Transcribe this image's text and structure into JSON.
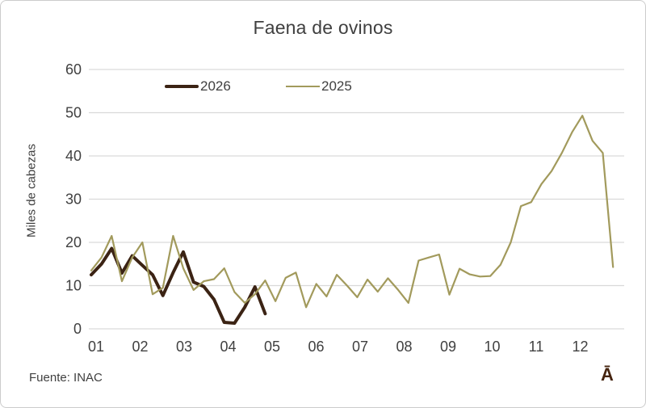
{
  "source": "Fuente: INAC",
  "watermark": "Ā",
  "colors": {
    "grid": "#d9d9d9",
    "axis_text": "#404040",
    "series_2026": "#3B2314",
    "series_2025": "#A29A5C",
    "watermark": "#45240F"
  },
  "chart_data": {
    "type": "line",
    "title": "Faena de ovinos",
    "xlabel": "",
    "ylabel": "Miles de cabezas",
    "x_unit": "week of year, labeled by month",
    "x_tick_labels": [
      "01",
      "02",
      "03",
      "04",
      "05",
      "06",
      "07",
      "08",
      "09",
      "10",
      "11",
      "12"
    ],
    "y_ticks": [
      0,
      10,
      20,
      30,
      40,
      50,
      60
    ],
    "ylim": [
      0,
      60
    ],
    "grid": true,
    "legend_position": "top",
    "series": [
      {
        "name": "2026",
        "color": "#3B2314",
        "stroke_width": 4,
        "start_week": 1,
        "values": [
          12.5,
          15,
          18.6,
          12.9,
          16.9,
          14.7,
          12.5,
          7.7,
          13,
          17.8,
          10.8,
          9.8,
          6.8,
          1.5,
          1.3,
          5,
          9.7,
          3.5
        ]
      },
      {
        "name": "2025",
        "color": "#A29A5C",
        "stroke_width": 2.2,
        "start_week": 1,
        "values": [
          13.5,
          16.5,
          21.5,
          11,
          16.5,
          20,
          8,
          9.5,
          21.5,
          14,
          9,
          11,
          11.5,
          14,
          8.5,
          6,
          8,
          11.2,
          6.4,
          11.8,
          13,
          5,
          10.4,
          7.5,
          12.5,
          10,
          7.3,
          11.4,
          8.6,
          11.7,
          9,
          6,
          15.8,
          16.5,
          17.2,
          7.9,
          13.9,
          12.6,
          12.1,
          12.2,
          14.8,
          20,
          28.4,
          29.3,
          33.5,
          36.5,
          40.7,
          45.5,
          49.3,
          43.5,
          40.7,
          14.3
        ]
      }
    ]
  }
}
